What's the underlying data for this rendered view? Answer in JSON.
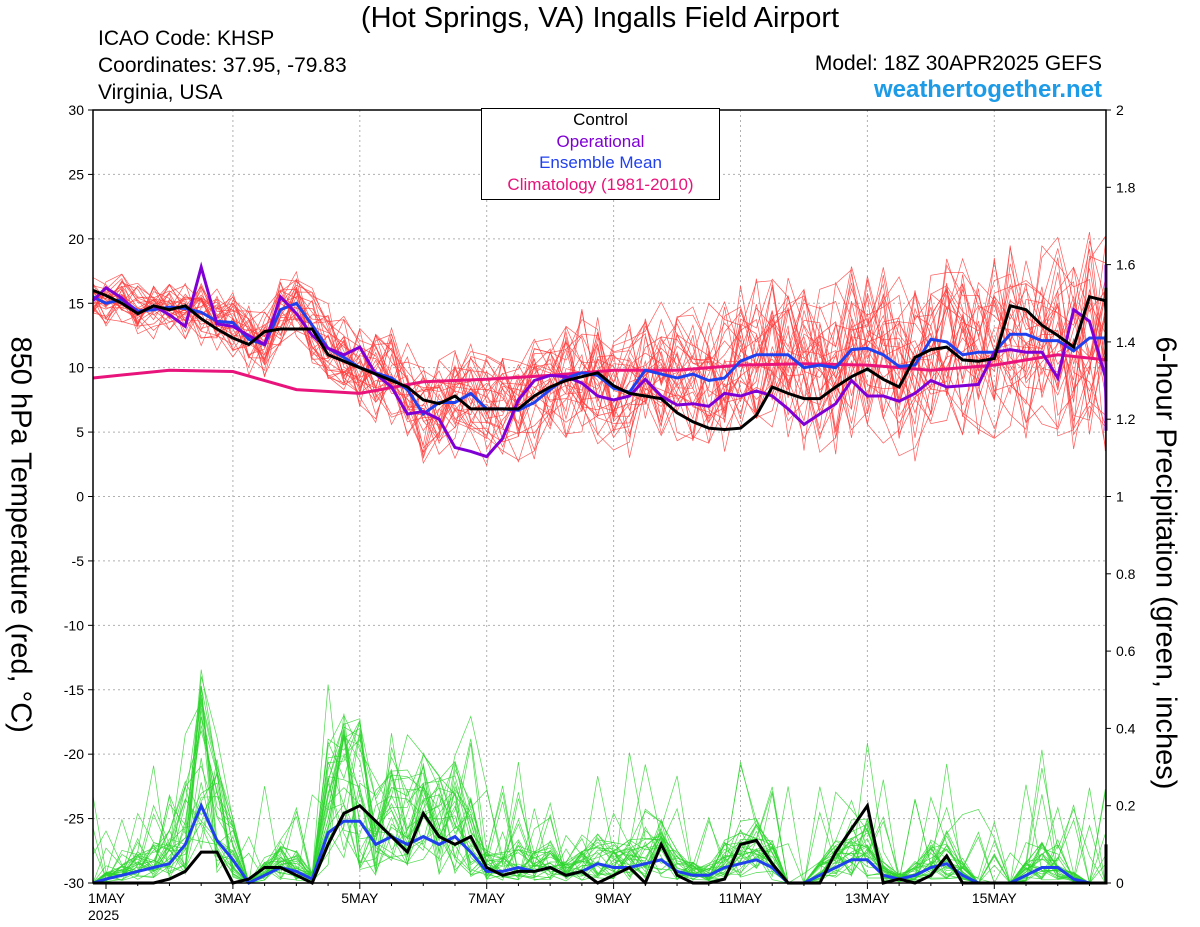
{
  "header": {
    "title": "(Hot Springs, VA) Ingalls Field Airport",
    "icao": "ICAO Code: KHSP",
    "coords": "Coordinates: 37.95, -79.83",
    "region": "Virginia, USA",
    "model": "Model: 18Z 30APR2025 GEFS",
    "site": "weathertogether.net"
  },
  "legend": {
    "control": "Control",
    "operational": "Operational",
    "mean": "Ensemble Mean",
    "clim": "Climatology (1981-2010)"
  },
  "colors": {
    "control": "#000000",
    "operational": "#7f00d4",
    "mean": "#2040ee",
    "clim": "#e8137b",
    "temp_members": "#ff3c3c",
    "precip_members": "#2ed52e",
    "site": "#1e9be6"
  },
  "chart_data": {
    "type": "line",
    "title": "(Hot Springs, VA) Ingalls Field Airport",
    "xlabel": "",
    "ylabel_left": "850 hPa Temperature (red, °C)",
    "ylabel_right": "6-hour Precipitation (green, inches)",
    "y_left_range": [
      -30,
      30
    ],
    "y_right_range": [
      0,
      2
    ],
    "x_range_days": [
      0,
      16.0
    ],
    "x_ticks": [
      {
        "day": 0,
        "label": "1MAY",
        "sub": "2025"
      },
      {
        "day": 2,
        "label": "3MAY"
      },
      {
        "day": 4,
        "label": "5MAY"
      },
      {
        "day": 6,
        "label": "7MAY"
      },
      {
        "day": 8,
        "label": "9MAY"
      },
      {
        "day": 10,
        "label": "11MAY"
      },
      {
        "day": 12,
        "label": "13MAY"
      },
      {
        "day": 14,
        "label": "15MAY"
      }
    ],
    "y_left_ticks": [
      "30",
      "25",
      "20",
      "15",
      "10",
      "5",
      "0",
      "-5",
      "-10",
      "-15",
      "-20",
      "-25",
      "-30"
    ],
    "y_right_ticks": [
      "2",
      "1.8",
      "1.6",
      "1.4",
      "1.2",
      "1",
      "0.8",
      "0.6",
      "0.4",
      "0.2",
      "0"
    ],
    "grid": true,
    "legend_position": "top-center",
    "series": {
      "control_temp": {
        "start_day": -0.25,
        "step_days": 0.25,
        "values": [
          16.0,
          15.6,
          15.0,
          14.2,
          14.8,
          14.5,
          14.8,
          13.8,
          13.0,
          12.3,
          11.8,
          12.8,
          13.0,
          13.0,
          13.0,
          11.0,
          10.5,
          10.0,
          9.5,
          9.0,
          8.5,
          7.5,
          7.2,
          7.8,
          6.8,
          6.8,
          6.8,
          6.8,
          7.8,
          8.5,
          9.0,
          9.3,
          9.6,
          8.6,
          8.0,
          7.8,
          7.6,
          6.5,
          5.8,
          5.3,
          5.2,
          5.3,
          6.3,
          8.5,
          8.0,
          7.6,
          7.6,
          8.5,
          9.3,
          9.9,
          9.1,
          8.5,
          10.8,
          11.4,
          11.6,
          10.6,
          10.5,
          10.7,
          14.8,
          14.5,
          13.3,
          12.5,
          11.6,
          15.5,
          15.2,
          14.3,
          13.4,
          13.4,
          15.5,
          14.9,
          13.9,
          12.2,
          11.3,
          12.4,
          12.1,
          12.5,
          12.1,
          10.5,
          10.8,
          16.2,
          15.3,
          15.4,
          14.7,
          13.8,
          15.5,
          13.0,
          11.8,
          11.7,
          11.7,
          13.8,
          14.8
        ]
      },
      "operational_temp": {
        "start_day": -0.25,
        "step_days": 0.25,
        "values": [
          15.2,
          16.2,
          15.4,
          14.2,
          14.8,
          14.1,
          13.2,
          17.8,
          13.4,
          13.2,
          12.5,
          11.8,
          15.5,
          14.2,
          12.5,
          11.5,
          11.0,
          11.6,
          9.5,
          8.5,
          6.4,
          6.6,
          6.0,
          3.8,
          3.5,
          3.1,
          4.5,
          7.5,
          9.0,
          9.4,
          9.3,
          8.8,
          7.8,
          7.5,
          7.8,
          9.1,
          7.8,
          7.1,
          7.2,
          7.0,
          8.0,
          7.8,
          8.2,
          7.8,
          6.8,
          5.6,
          6.4,
          7.2,
          9.0,
          7.8,
          7.8,
          7.4,
          8.0,
          9.0,
          8.5,
          8.6,
          8.7,
          11.2,
          11.4,
          11.2,
          11.2,
          9.2,
          14.5,
          13.6,
          9.3,
          7.2,
          7.2,
          10.6,
          11.0,
          12.2,
          9.0,
          7.0,
          7.0,
          7.6,
          8.3,
          11.4,
          12.8,
          14.5,
          14.5,
          17.8,
          18.0,
          16.5,
          16.8,
          14.6,
          7.0,
          9.5,
          9.4,
          7.0,
          8.2,
          6.8,
          5.1,
          6.4,
          9.5
        ]
      },
      "mean_temp": {
        "start_day": -0.25,
        "step_days": 0.25,
        "values": [
          15.5,
          15.0,
          15.3,
          14.4,
          14.5,
          14.7,
          14.6,
          14.3,
          13.6,
          13.5,
          12.2,
          11.8,
          14.5,
          15.0,
          13.3,
          11.5,
          10.8,
          10.0,
          9.6,
          9.2,
          8.3,
          6.4,
          7.3,
          7.3,
          8.0,
          6.8,
          6.8,
          6.7,
          7.3,
          8.3,
          9.2,
          9.6,
          9.4,
          8.4,
          8.1,
          9.8,
          9.5,
          9.2,
          9.5,
          9.0,
          9.2,
          10.5,
          11.0,
          11.0,
          11.0,
          10.0,
          10.2,
          10.0,
          11.4,
          11.5,
          11.0,
          10.1,
          10.2,
          12.2,
          12.0,
          11.0,
          11.2,
          11.2,
          12.6,
          12.6,
          12.1,
          12.1,
          11.3,
          12.3,
          12.3,
          11.7,
          11.1,
          11.0,
          12.9,
          12.9,
          12.6,
          12.1,
          11.6,
          12.1,
          12.3,
          13.1,
          13.2,
          12.4,
          11.2,
          12.8,
          12.8,
          12.6,
          11.6,
          11.1,
          12.7,
          12.9,
          12.4,
          12.1,
          11.3,
          11.0,
          12.9
        ]
      },
      "climatology_temp": {
        "day_values": [
          [
            -0.25,
            9.2
          ],
          [
            1,
            9.8
          ],
          [
            2,
            9.7
          ],
          [
            3,
            8.3
          ],
          [
            4,
            8.0
          ],
          [
            5,
            8.9
          ],
          [
            6,
            9.1
          ],
          [
            7,
            9.4
          ],
          [
            8,
            9.8
          ],
          [
            9,
            9.8
          ],
          [
            10,
            10.2
          ],
          [
            11,
            10.3
          ],
          [
            12,
            10.2
          ],
          [
            13,
            9.8
          ],
          [
            14,
            10.2
          ],
          [
            15,
            11.0
          ],
          [
            16,
            10.6
          ]
        ]
      },
      "control_precip": {
        "start_day": -0.25,
        "step_days": 0.25,
        "values": [
          0,
          0,
          0,
          0,
          0,
          0.01,
          0.03,
          0.08,
          0.08,
          0.0,
          0.01,
          0.04,
          0.04,
          0.02,
          0.0,
          0.1,
          0.18,
          0.2,
          0.16,
          0.12,
          0.08,
          0.18,
          0.12,
          0.1,
          0.12,
          0.04,
          0.02,
          0.03,
          0.03,
          0.04,
          0.02,
          0.03,
          0.0,
          0.02,
          0.04,
          0.0,
          0.1,
          0.02,
          0.0,
          0.0,
          0.01,
          0.1,
          0.11,
          0.05,
          0.0,
          0.0,
          0.0,
          0.08,
          0.14,
          0.2,
          0.0,
          0.01,
          0.0,
          0.02,
          0.07,
          0.0,
          0.0,
          0.0,
          0.0,
          0.0,
          0.0,
          0.0,
          0.0,
          0.0,
          0.0,
          0.0,
          0.0,
          0.01,
          0.0,
          0.0,
          0.0,
          0.0,
          0.1,
          0.03,
          0.0,
          0.0,
          0.0,
          0.0,
          0.0,
          0.0,
          0.0,
          0.0,
          0.0,
          0.0,
          0.0,
          0.0,
          0.0,
          0.0,
          0.0,
          0.0,
          0.0,
          0.0
        ]
      },
      "mean_precip": {
        "start_day": -0.25,
        "step_days": 0.25,
        "values": [
          0.0,
          0.01,
          0.02,
          0.03,
          0.04,
          0.05,
          0.1,
          0.2,
          0.11,
          0.06,
          0.0,
          0.02,
          0.04,
          0.03,
          0.01,
          0.13,
          0.16,
          0.16,
          0.1,
          0.12,
          0.1,
          0.12,
          0.1,
          0.12,
          0.08,
          0.03,
          0.03,
          0.04,
          0.03,
          0.04,
          0.02,
          0.03,
          0.05,
          0.04,
          0.04,
          0.05,
          0.06,
          0.03,
          0.02,
          0.02,
          0.04,
          0.05,
          0.06,
          0.04,
          0.0,
          0.0,
          0.02,
          0.04,
          0.06,
          0.06,
          0.02,
          0.01,
          0.02,
          0.04,
          0.05,
          0.02,
          0.0,
          0.0,
          0.0,
          0.02,
          0.04,
          0.04,
          0.01,
          0.0,
          0.0,
          0.0,
          0.01,
          0.03,
          0.05,
          0.05,
          0.03,
          0.02,
          0.03,
          0.04,
          0.05,
          0.06,
          0.07,
          0.05,
          0.02,
          0.0,
          0.02,
          0.03,
          0.04,
          0.05,
          0.05,
          0.04,
          0.03,
          0.04,
          0.04,
          0.05,
          0.06,
          0.05,
          0.04,
          0.06,
          0.06
        ]
      }
    }
  }
}
